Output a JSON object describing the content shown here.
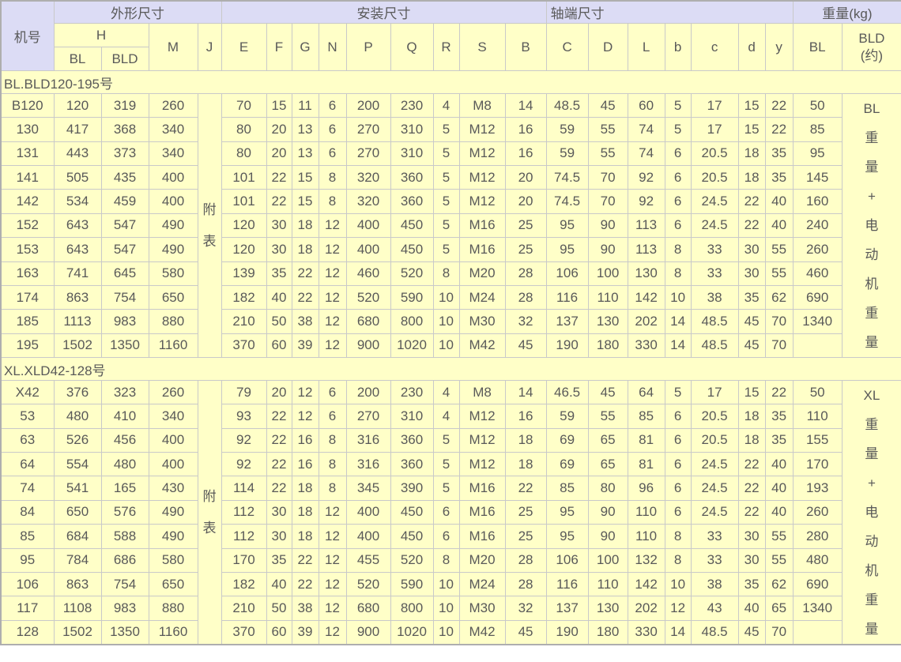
{
  "table": {
    "corner": "机号",
    "groups": {
      "outline": "外形尺寸",
      "install": "安装尺寸",
      "shaft": "轴端尺寸",
      "weight": "重量(kg)"
    },
    "sub": {
      "h": "H",
      "m": "M",
      "j": "J",
      "bl": "BL",
      "bld": "BLD",
      "e": "E",
      "f": "F",
      "g": "G",
      "n": "N",
      "p": "P",
      "q": "Q",
      "r": "R",
      "s": "S",
      "b": "B",
      "c": "C",
      "d": "D",
      "l": "L",
      "b2": "b",
      "c2": "c",
      "d2": "d",
      "y": "y",
      "bl_wt": "BL",
      "bld_wt_line1": "BLD",
      "bld_wt_line2": "(约)"
    }
  },
  "sections": [
    {
      "title": "BL.BLD120-195号",
      "j_note": [
        "附",
        "表"
      ],
      "weight_note": [
        "BL",
        "重",
        "量",
        "+",
        "电",
        "动",
        "机",
        "重",
        "量"
      ],
      "rows": [
        [
          "B120",
          "120",
          "319",
          "260",
          "70",
          "15",
          "11",
          "6",
          "200",
          "230",
          "4",
          "M8",
          "14",
          "48.5",
          "45",
          "60",
          "5",
          "17",
          "15",
          "22",
          "50"
        ],
        [
          "130",
          "417",
          "368",
          "340",
          "80",
          "20",
          "13",
          "6",
          "270",
          "310",
          "5",
          "M12",
          "16",
          "59",
          "55",
          "74",
          "5",
          "17",
          "15",
          "22",
          "85"
        ],
        [
          "131",
          "443",
          "373",
          "340",
          "80",
          "20",
          "13",
          "6",
          "270",
          "310",
          "5",
          "M12",
          "16",
          "59",
          "55",
          "74",
          "6",
          "20.5",
          "18",
          "35",
          "95"
        ],
        [
          "141",
          "505",
          "435",
          "400",
          "101",
          "22",
          "15",
          "8",
          "320",
          "360",
          "5",
          "M12",
          "20",
          "74.5",
          "70",
          "92",
          "6",
          "20.5",
          "18",
          "35",
          "145"
        ],
        [
          "142",
          "534",
          "459",
          "400",
          "101",
          "22",
          "15",
          "8",
          "320",
          "360",
          "5",
          "M12",
          "20",
          "74.5",
          "70",
          "92",
          "6",
          "24.5",
          "22",
          "40",
          "160"
        ],
        [
          "152",
          "643",
          "547",
          "490",
          "120",
          "30",
          "18",
          "12",
          "400",
          "450",
          "5",
          "M16",
          "25",
          "95",
          "90",
          "113",
          "6",
          "24.5",
          "22",
          "40",
          "240"
        ],
        [
          "153",
          "643",
          "547",
          "490",
          "120",
          "30",
          "18",
          "12",
          "400",
          "450",
          "5",
          "M16",
          "25",
          "95",
          "90",
          "113",
          "8",
          "33",
          "30",
          "55",
          "260"
        ],
        [
          "163",
          "741",
          "645",
          "580",
          "139",
          "35",
          "22",
          "12",
          "460",
          "520",
          "8",
          "M20",
          "28",
          "106",
          "100",
          "130",
          "8",
          "33",
          "30",
          "55",
          "460"
        ],
        [
          "174",
          "863",
          "754",
          "650",
          "182",
          "40",
          "22",
          "12",
          "520",
          "590",
          "10",
          "M24",
          "28",
          "116",
          "110",
          "142",
          "10",
          "38",
          "35",
          "62",
          "690"
        ],
        [
          "185",
          "1113",
          "983",
          "880",
          "210",
          "50",
          "38",
          "12",
          "680",
          "800",
          "10",
          "M30",
          "32",
          "137",
          "130",
          "202",
          "14",
          "48.5",
          "45",
          "70",
          "1340"
        ],
        [
          "195",
          "1502",
          "1350",
          "1160",
          "370",
          "60",
          "39",
          "12",
          "900",
          "1020",
          "10",
          "M42",
          "45",
          "190",
          "180",
          "330",
          "14",
          "48.5",
          "45",
          "70",
          ""
        ]
      ]
    },
    {
      "title": "XL.XLD42-128号",
      "j_note": [
        "附",
        "表"
      ],
      "weight_note": [
        "XL",
        "重",
        "量",
        "+",
        "电",
        "动",
        "机",
        "重",
        "量"
      ],
      "rows": [
        [
          "X42",
          "376",
          "323",
          "260",
          "79",
          "20",
          "12",
          "6",
          "200",
          "230",
          "4",
          "M8",
          "14",
          "46.5",
          "45",
          "64",
          "5",
          "17",
          "15",
          "22",
          "50"
        ],
        [
          "53",
          "480",
          "410",
          "340",
          "93",
          "22",
          "12",
          "6",
          "270",
          "310",
          "4",
          "M12",
          "16",
          "59",
          "55",
          "85",
          "6",
          "20.5",
          "18",
          "35",
          "110"
        ],
        [
          "63",
          "526",
          "456",
          "400",
          "92",
          "22",
          "16",
          "8",
          "316",
          "360",
          "5",
          "M12",
          "18",
          "69",
          "65",
          "81",
          "6",
          "20.5",
          "18",
          "35",
          "155"
        ],
        [
          "64",
          "554",
          "480",
          "400",
          "92",
          "22",
          "16",
          "8",
          "316",
          "360",
          "5",
          "M12",
          "18",
          "69",
          "65",
          "81",
          "6",
          "24.5",
          "22",
          "40",
          "170"
        ],
        [
          "74",
          "541",
          "165",
          "430",
          "114",
          "22",
          "18",
          "8",
          "345",
          "390",
          "5",
          "M16",
          "22",
          "85",
          "80",
          "96",
          "6",
          "24.5",
          "22",
          "40",
          "193"
        ],
        [
          "84",
          "650",
          "576",
          "490",
          "112",
          "30",
          "18",
          "12",
          "400",
          "450",
          "6",
          "M16",
          "25",
          "95",
          "90",
          "110",
          "6",
          "24.5",
          "22",
          "40",
          "260"
        ],
        [
          "85",
          "684",
          "588",
          "490",
          "112",
          "30",
          "18",
          "12",
          "400",
          "450",
          "6",
          "M16",
          "25",
          "95",
          "90",
          "110",
          "8",
          "33",
          "30",
          "55",
          "280"
        ],
        [
          "95",
          "784",
          "686",
          "580",
          "170",
          "35",
          "22",
          "12",
          "455",
          "520",
          "8",
          "M20",
          "28",
          "106",
          "100",
          "132",
          "8",
          "33",
          "30",
          "55",
          "480"
        ],
        [
          "106",
          "863",
          "754",
          "650",
          "182",
          "40",
          "22",
          "12",
          "520",
          "590",
          "10",
          "M24",
          "28",
          "116",
          "110",
          "142",
          "10",
          "38",
          "35",
          "62",
          "690"
        ],
        [
          "117",
          "1108",
          "983",
          "880",
          "210",
          "50",
          "38",
          "12",
          "680",
          "800",
          "10",
          "M30",
          "32",
          "137",
          "130",
          "202",
          "12",
          "43",
          "40",
          "65",
          "1340"
        ],
        [
          "128",
          "1502",
          "1350",
          "1160",
          "370",
          "60",
          "39",
          "12",
          "900",
          "1020",
          "10",
          "M42",
          "45",
          "190",
          "180",
          "330",
          "14",
          "48.5",
          "45",
          "70",
          ""
        ]
      ]
    }
  ],
  "colors": {
    "header_bg": "#dcdcf5",
    "cell_bg": "#ffffc8",
    "border": "#c9c9c9",
    "text": "#595959"
  }
}
